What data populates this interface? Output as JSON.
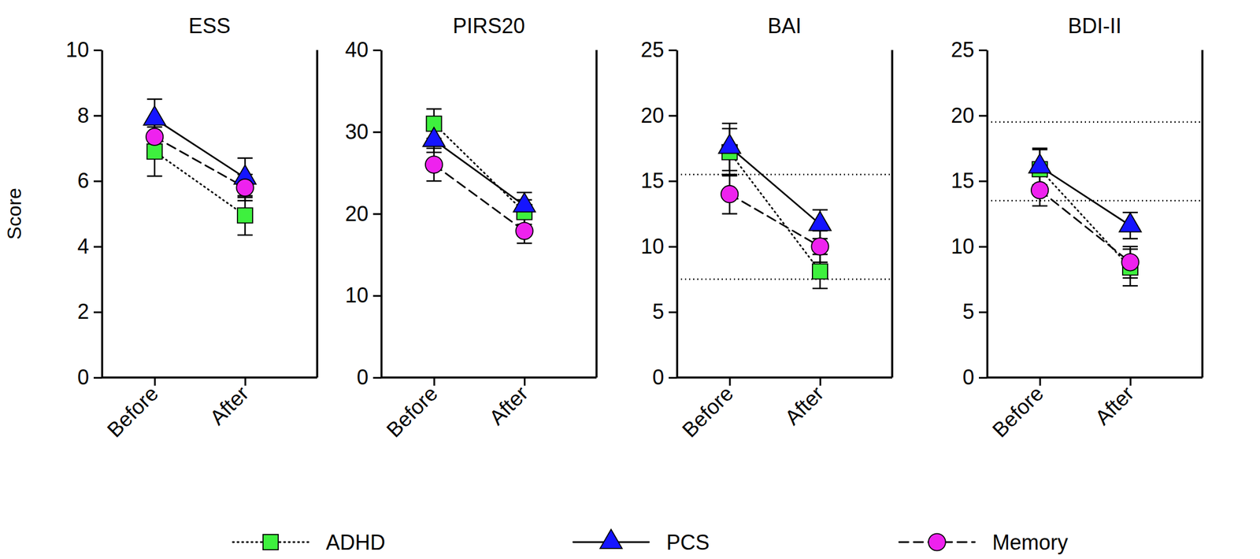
{
  "chart_data": [
    {
      "type": "line",
      "title": "ESS",
      "y_label": "Score",
      "legend": "bottom",
      "categories": [
        "Before",
        "After"
      ],
      "series": [
        {
          "name": "ADHD",
          "color": "#3ef03e",
          "marker": "square",
          "line_style": "dotted",
          "values": [
            6.9,
            4.95
          ],
          "errors": [
            0.75,
            0.6
          ]
        },
        {
          "name": "PCS",
          "color": "#1515ff",
          "marker": "triangle",
          "line_style": "solid",
          "values": [
            7.9,
            6.1
          ],
          "errors": [
            0.6,
            0.6
          ]
        },
        {
          "name": "Memory",
          "color": "#ee22ee",
          "marker": "circle",
          "line_style": "dashed",
          "values": [
            7.35,
            5.8
          ],
          "errors": [
            0.45,
            0.4
          ]
        }
      ],
      "ylim": [
        0,
        10
      ],
      "yticks": [
        0,
        2,
        4,
        6,
        8,
        10
      ]
    },
    {
      "type": "line",
      "title": "PIRS20",
      "categories": [
        "Before",
        "After"
      ],
      "series": [
        {
          "name": "ADHD",
          "color": "#3ef03e",
          "marker": "square",
          "line_style": "dotted",
          "values": [
            31,
            20.2
          ],
          "errors": [
            1.8,
            1.5
          ]
        },
        {
          "name": "PCS",
          "color": "#1515ff",
          "marker": "triangle",
          "line_style": "solid",
          "values": [
            29,
            21
          ],
          "errors": [
            1.5,
            1.6
          ]
        },
        {
          "name": "Memory",
          "color": "#ee22ee",
          "marker": "circle",
          "line_style": "dashed",
          "values": [
            26,
            17.9
          ],
          "errors": [
            2,
            1.5
          ]
        }
      ],
      "ylim": [
        0,
        40
      ],
      "yticks": [
        0,
        10,
        20,
        30,
        40
      ]
    },
    {
      "type": "line",
      "title": "BAI",
      "categories": [
        "Before",
        "After"
      ],
      "series": [
        {
          "name": "ADHD",
          "color": "#3ef03e",
          "marker": "square",
          "line_style": "dotted",
          "values": [
            17.2,
            8.1
          ],
          "errors": [
            1.8,
            1.3
          ]
        },
        {
          "name": "PCS",
          "color": "#1515ff",
          "marker": "triangle",
          "line_style": "solid",
          "values": [
            17.6,
            11.7
          ],
          "errors": [
            1.8,
            1.1
          ]
        },
        {
          "name": "Memory",
          "color": "#ee22ee",
          "marker": "circle",
          "line_style": "dashed",
          "values": [
            14,
            10
          ],
          "errors": [
            1.5,
            1.2
          ]
        }
      ],
      "reference_lines": [
        15.5,
        7.5
      ],
      "ylim": [
        0,
        25
      ],
      "yticks": [
        0,
        5,
        10,
        15,
        20,
        25
      ]
    },
    {
      "type": "line",
      "title": "BDI-II",
      "categories": [
        "Before",
        "After"
      ],
      "series": [
        {
          "name": "ADHD",
          "color": "#3ef03e",
          "marker": "square",
          "line_style": "dotted",
          "values": [
            15.9,
            8.4
          ],
          "errors": [
            1.5,
            1.4
          ]
        },
        {
          "name": "PCS",
          "color": "#1515ff",
          "marker": "triangle",
          "line_style": "solid",
          "values": [
            16.1,
            11.6
          ],
          "errors": [
            1.4,
            1.0
          ]
        },
        {
          "name": "Memory",
          "color": "#ee22ee",
          "marker": "circle",
          "line_style": "dashed",
          "values": [
            14.3,
            8.8
          ],
          "errors": [
            1.2,
            1.2
          ]
        }
      ],
      "reference_lines": [
        19.5,
        13.5
      ],
      "ylim": [
        0,
        25
      ],
      "yticks": [
        0,
        5,
        10,
        15,
        20,
        25
      ]
    }
  ]
}
